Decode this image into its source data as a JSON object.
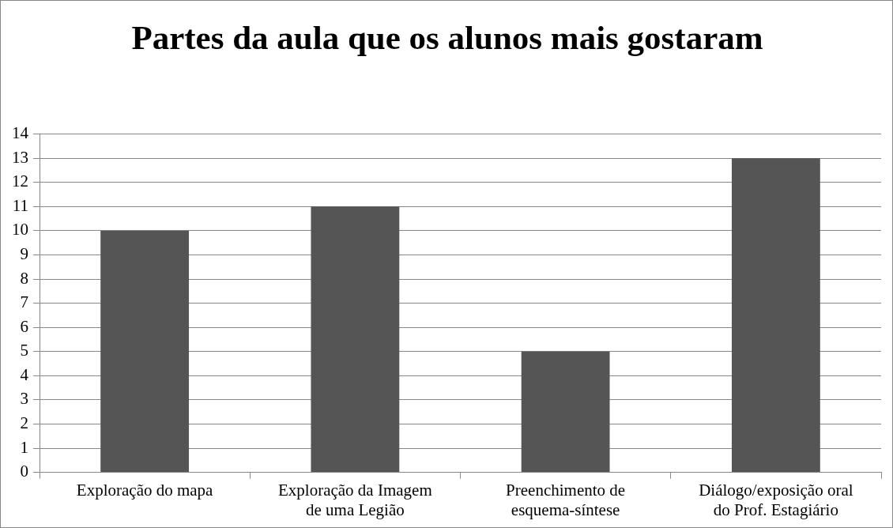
{
  "chart_data": {
    "type": "bar",
    "title": "Partes da aula que os alunos mais gostaram",
    "categories": [
      "Exploração do mapa",
      "Exploração da Imagem de uma Legião",
      "Preenchimento de esquema-síntese",
      "Diálogo/exposição oral do Prof. Estagiário"
    ],
    "values": [
      10,
      11,
      5,
      13
    ],
    "color": "#555555",
    "ylim": [
      0,
      14
    ],
    "yticks": [
      0,
      1,
      2,
      3,
      4,
      5,
      6,
      7,
      8,
      9,
      10,
      11,
      12,
      13,
      14
    ],
    "grid": "y",
    "legend": false
  }
}
